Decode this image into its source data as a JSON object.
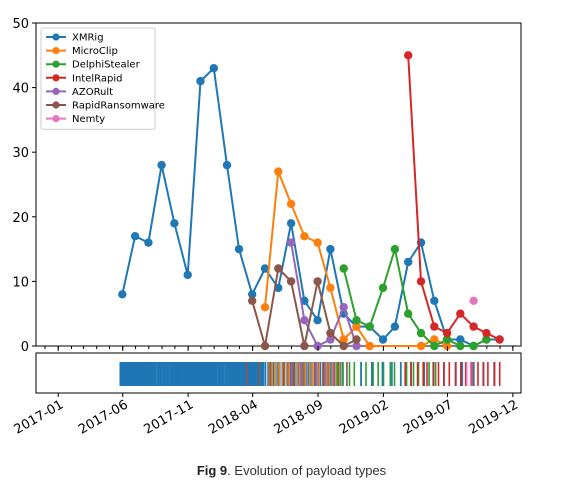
{
  "chart_data": {
    "type": "line",
    "title": "",
    "xlabel": "",
    "ylabel": "",
    "ylim": [
      0,
      50
    ],
    "yticks": [
      0,
      10,
      20,
      30,
      40,
      50
    ],
    "xlim": [
      "2016-11-10",
      "2019-12-20"
    ],
    "xticks": [
      "2017-01",
      "2017-06",
      "2017-11",
      "2018-04",
      "2018-09",
      "2019-02",
      "2019-07",
      "2019-12"
    ],
    "legend": "top-left",
    "grid": false,
    "series": [
      {
        "name": "XMRig",
        "color": "#1f77b4",
        "points": [
          [
            "2017-05-31",
            8
          ],
          [
            "2017-06-30",
            17
          ],
          [
            "2017-07-31",
            16
          ],
          [
            "2017-08-31",
            28
          ],
          [
            "2017-09-30",
            19
          ],
          [
            "2017-10-31",
            11
          ],
          [
            "2017-11-30",
            41
          ],
          [
            "2017-12-31",
            43
          ],
          [
            "2018-01-31",
            28
          ],
          [
            "2018-02-28",
            15
          ],
          [
            "2018-03-31",
            8
          ],
          [
            "2018-04-30",
            12
          ],
          [
            "2018-05-31",
            9
          ],
          [
            "2018-06-30",
            19
          ],
          [
            "2018-07-31",
            7
          ],
          [
            "2018-08-31",
            4
          ],
          [
            "2018-09-30",
            15
          ],
          [
            "2018-10-31",
            5
          ],
          [
            "2018-11-30",
            3
          ],
          [
            "2018-12-31",
            3
          ],
          [
            "2019-01-31",
            1
          ],
          [
            "2019-02-28",
            3
          ],
          [
            "2019-03-31",
            13
          ],
          [
            "2019-04-30",
            16
          ],
          [
            "2019-05-31",
            7
          ],
          [
            "2019-06-30",
            1
          ],
          [
            "2019-07-31",
            1
          ],
          [
            "2019-08-31",
            0
          ],
          [
            "2019-09-30",
            1
          ],
          [
            "2019-10-31",
            1
          ]
        ]
      },
      {
        "name": "MicroClip",
        "color": "#ff7f0e",
        "points": [
          [
            "2018-04-30",
            6
          ],
          [
            "2018-05-31",
            27
          ],
          [
            "2018-06-30",
            22
          ],
          [
            "2018-07-31",
            17
          ],
          [
            "2018-08-31",
            16
          ],
          [
            "2018-09-30",
            9
          ],
          [
            "2018-10-31",
            1
          ],
          [
            "2018-11-30",
            3
          ],
          [
            "2018-12-31",
            0
          ],
          [
            "2019-04-30",
            0
          ],
          [
            "2019-05-31",
            1
          ],
          [
            "2019-06-30",
            0
          ]
        ]
      },
      {
        "name": "DelphiStealer",
        "color": "#2ca02c",
        "points": [
          [
            "2018-10-31",
            12
          ],
          [
            "2018-11-30",
            4
          ],
          [
            "2018-12-31",
            3
          ],
          [
            "2019-01-31",
            9
          ],
          [
            "2019-02-28",
            15
          ],
          [
            "2019-03-31",
            5
          ],
          [
            "2019-04-30",
            2
          ],
          [
            "2019-05-31",
            0
          ],
          [
            "2019-06-30",
            1
          ],
          [
            "2019-07-31",
            0
          ],
          [
            "2019-08-31",
            0
          ],
          [
            "2019-09-30",
            1
          ]
        ]
      },
      {
        "name": "IntelRapid",
        "color": "#d62728",
        "points": [
          [
            "2019-03-31",
            45
          ],
          [
            "2019-04-30",
            10
          ],
          [
            "2019-05-31",
            3
          ],
          [
            "2019-06-30",
            2
          ],
          [
            "2019-07-31",
            5
          ],
          [
            "2019-08-31",
            3
          ],
          [
            "2019-09-30",
            2
          ],
          [
            "2019-10-31",
            1
          ]
        ]
      },
      {
        "name": "AZORult",
        "color": "#9467bd",
        "points": [
          [
            "2018-06-30",
            16
          ],
          [
            "2018-07-31",
            4
          ],
          [
            "2018-08-31",
            0
          ],
          [
            "2018-09-30",
            1
          ],
          [
            "2018-10-31",
            6
          ],
          [
            "2018-11-30",
            0
          ]
        ]
      },
      {
        "name": "RapidRansomware",
        "color": "#8c564b",
        "points": [
          [
            "2018-03-31",
            7
          ],
          [
            "2018-04-30",
            0
          ],
          [
            "2018-05-31",
            12
          ],
          [
            "2018-06-30",
            10
          ],
          [
            "2018-07-31",
            0
          ],
          [
            "2018-08-31",
            10
          ],
          [
            "2018-09-30",
            2
          ],
          [
            "2018-10-31",
            0
          ],
          [
            "2018-11-30",
            1
          ]
        ]
      },
      {
        "name": "Nemty",
        "color": "#e377c2",
        "points": [
          [
            "2019-08-31",
            7
          ]
        ]
      }
    ],
    "timeline_strip": {
      "segments": [
        {
          "color": "#1f77b4",
          "from": "2017-05-25",
          "to": "2018-04-25",
          "count": 130
        },
        {
          "color": "#1f77b4",
          "from": "2018-04-25",
          "to": "2018-10-31",
          "count": 40
        },
        {
          "color": "#ff7f0e",
          "from": "2018-05-05",
          "to": "2018-10-25",
          "count": 22
        },
        {
          "color": "#8c564b",
          "from": "2018-03-10",
          "to": "2018-11-20",
          "count": 10
        },
        {
          "color": "#9467bd",
          "from": "2018-06-20",
          "to": "2018-10-25",
          "count": 5
        },
        {
          "color": "#2ca02c",
          "from": "2018-10-10",
          "to": "2019-06-10",
          "count": 18
        },
        {
          "color": "#1f77b4",
          "from": "2018-12-01",
          "to": "2019-10-31",
          "count": 14
        },
        {
          "color": "#d62728",
          "from": "2019-03-20",
          "to": "2019-11-05",
          "count": 18
        },
        {
          "color": "#e377c2",
          "from": "2019-08-10",
          "to": "2019-08-31",
          "count": 2
        }
      ]
    }
  },
  "caption": {
    "label": "Fig 9",
    "text": ". Evolution of payload types"
  }
}
